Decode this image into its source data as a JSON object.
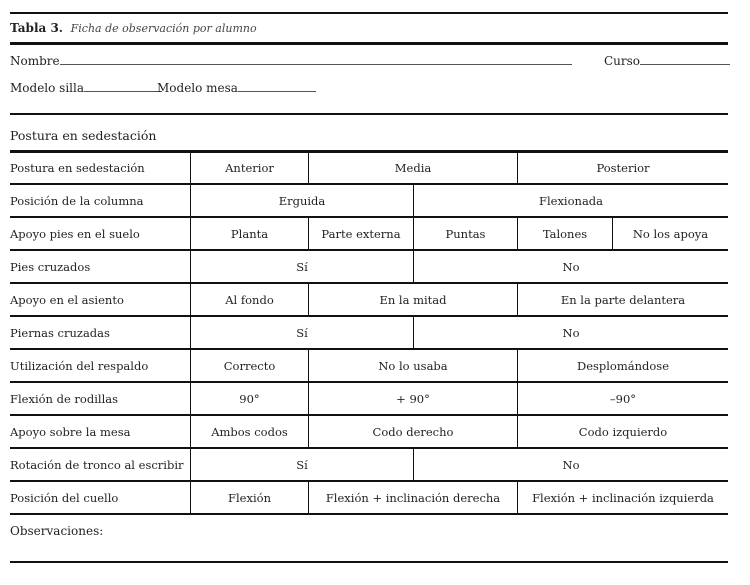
{
  "title": {
    "number": "Tabla 3.",
    "caption": "Ficha de observación por alumno"
  },
  "fields": {
    "nombre": "Nombre",
    "curso": "Curso",
    "modelo_silla": "Modelo silla",
    "modelo_mesa": "Modelo mesa"
  },
  "section_title": "Postura en sedestación",
  "rows": [
    {
      "label": "Postura en sedestación",
      "layout": "3",
      "options": [
        "Anterior",
        "Media",
        "Posterior"
      ]
    },
    {
      "label": "Posición de la columna",
      "layout": "2",
      "options": [
        "Erguida",
        "Flexionada"
      ]
    },
    {
      "label": "Apoyo pies en el suelo",
      "layout": "5",
      "options": [
        "Planta",
        "Parte externa",
        "Puntas",
        "Talones",
        "No los apoya"
      ]
    },
    {
      "label": "Pies cruzados",
      "layout": "2",
      "options": [
        "Sí",
        "No"
      ]
    },
    {
      "label": "Apoyo en el asiento",
      "layout": "3",
      "options": [
        "Al fondo",
        "En la mitad",
        "En la parte delantera"
      ]
    },
    {
      "label": "Piernas cruzadas",
      "layout": "2",
      "options": [
        "Sí",
        "No"
      ]
    },
    {
      "label": "Utilización del respaldo",
      "layout": "3",
      "options": [
        "Correcto",
        "No lo usaba",
        "Desplomándose"
      ]
    },
    {
      "label": "Flexión de rodillas",
      "layout": "3",
      "options": [
        "90°",
        "+ 90°",
        "–90°"
      ]
    },
    {
      "label": "Apoyo sobre la mesa",
      "layout": "3",
      "options": [
        "Ambos codos",
        "Codo derecho",
        "Codo izquierdo"
      ]
    },
    {
      "label": "Rotación de tronco al escribir",
      "layout": "2",
      "options": [
        "Sí",
        "No"
      ]
    },
    {
      "label": "Posición del cuello",
      "layout": "3",
      "options": [
        "Flexión",
        "Flexión + inclinación derecha",
        "Flexión + inclinación izquierda"
      ]
    }
  ],
  "observations_label": "Observaciones:"
}
